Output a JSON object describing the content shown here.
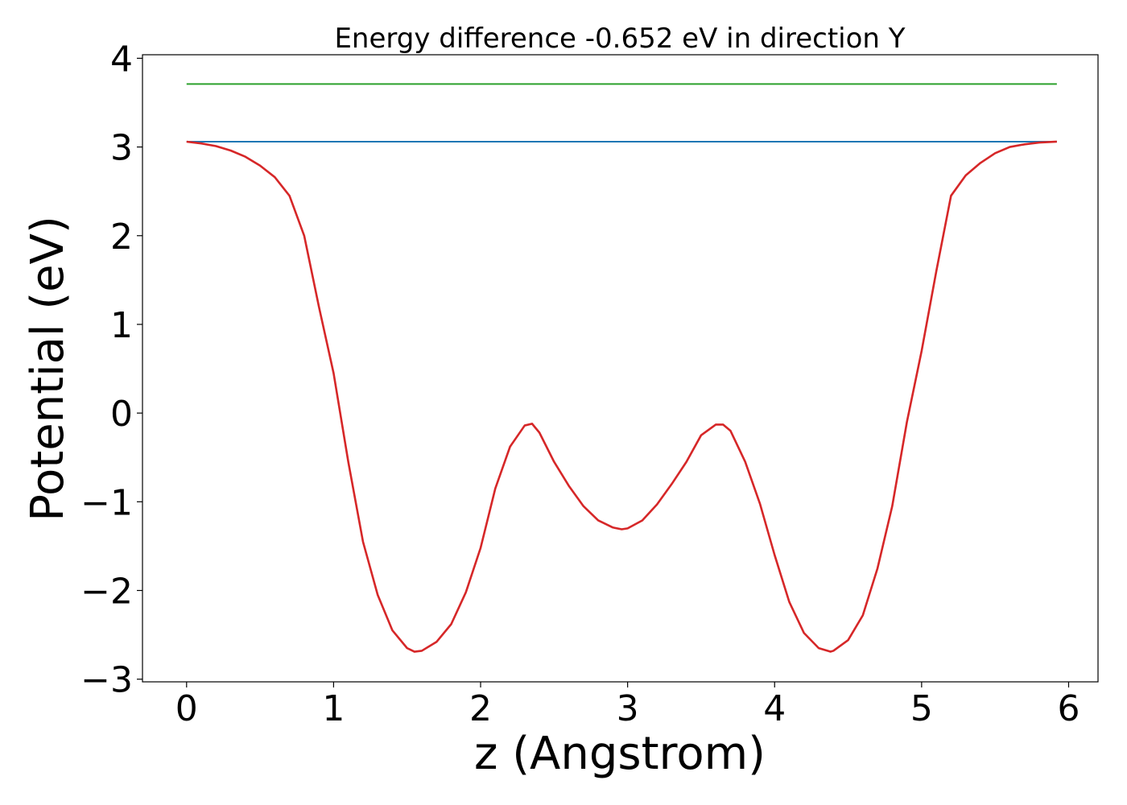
{
  "chart_data": {
    "type": "line",
    "title": "Energy difference -0.652 eV in direction Y",
    "xlabel": "z (Angstrom)",
    "ylabel": "Potential (eV)",
    "xlim": [
      -0.3,
      6.2
    ],
    "ylim": [
      -3.03,
      4.04
    ],
    "xticks": [
      0,
      1,
      2,
      3,
      4,
      5,
      6
    ],
    "xtick_labels": [
      "0",
      "1",
      "2",
      "3",
      "4",
      "5",
      "6"
    ],
    "yticks": [
      -3,
      -2,
      -1,
      0,
      1,
      2,
      3,
      4
    ],
    "ytick_labels": [
      "−3",
      "−2",
      "−1",
      "0",
      "1",
      "2",
      "3",
      "4"
    ],
    "grid": false,
    "series": [
      {
        "color": "#2ca02c",
        "x": [
          0,
          5.92
        ],
        "y": [
          3.71,
          3.71
        ]
      },
      {
        "color": "#1f77b4",
        "x": [
          0,
          5.92
        ],
        "y": [
          3.06,
          3.06
        ]
      },
      {
        "color": "#d62728",
        "x": [
          0,
          0.1,
          0.2,
          0.3,
          0.4,
          0.5,
          0.6,
          0.7,
          0.8,
          0.9,
          1.0,
          1.1,
          1.2,
          1.3,
          1.4,
          1.5,
          1.55,
          1.6,
          1.7,
          1.8,
          1.9,
          2.0,
          2.1,
          2.2,
          2.3,
          2.35,
          2.4,
          2.5,
          2.6,
          2.7,
          2.8,
          2.9,
          2.96,
          3.0,
          3.1,
          3.2,
          3.3,
          3.4,
          3.5,
          3.6,
          3.65,
          3.7,
          3.8,
          3.9,
          4.0,
          4.1,
          4.2,
          4.3,
          4.38,
          4.4,
          4.5,
          4.6,
          4.7,
          4.8,
          4.9,
          5.0,
          5.1,
          5.2,
          5.3,
          5.4,
          5.5,
          5.6,
          5.7,
          5.8,
          5.92
        ],
        "y": [
          3.06,
          3.04,
          3.01,
          2.96,
          2.89,
          2.79,
          2.66,
          2.45,
          2.0,
          1.2,
          0.45,
          -0.55,
          -1.45,
          -2.05,
          -2.45,
          -2.65,
          -2.69,
          -2.68,
          -2.58,
          -2.38,
          -2.02,
          -1.52,
          -0.85,
          -0.38,
          -0.14,
          -0.12,
          -0.22,
          -0.55,
          -0.82,
          -1.05,
          -1.21,
          -1.29,
          -1.31,
          -1.3,
          -1.21,
          -1.03,
          -0.8,
          -0.55,
          -0.25,
          -0.13,
          -0.13,
          -0.2,
          -0.55,
          -1.02,
          -1.6,
          -2.13,
          -2.48,
          -2.65,
          -2.69,
          -2.68,
          -2.56,
          -2.28,
          -1.75,
          -1.05,
          -0.1,
          0.7,
          1.6,
          2.45,
          2.68,
          2.82,
          2.93,
          3.0,
          3.03,
          3.05,
          3.06
        ]
      }
    ]
  }
}
